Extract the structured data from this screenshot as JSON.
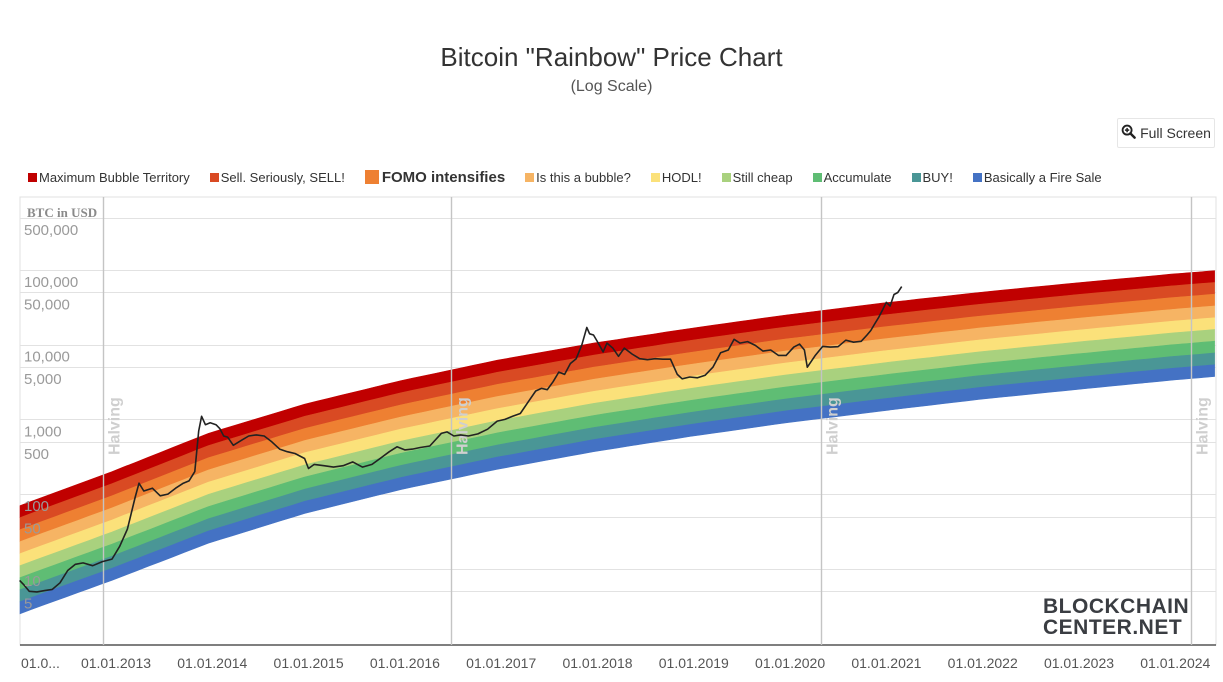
{
  "header": {
    "title": "Bitcoin \"Rainbow\" Price Chart",
    "subtitle": "(Log Scale)"
  },
  "toolbar": {
    "fullscreen_label": "Full Screen",
    "fullscreen_icon": "zoom-in-icon"
  },
  "watermark": {
    "line1": "BLOCKCHAIN",
    "line2": "CENTER.NET"
  },
  "chart_data": {
    "type": "area",
    "title": "Bitcoin \"Rainbow\" Price Chart",
    "subtitle": "(Log Scale)",
    "ylabel": "BTC in USD",
    "xlabel": "",
    "yscale": "log",
    "ylim": [
      1,
      1000000
    ],
    "xlim": [
      2012.04,
      2024.45
    ],
    "grid": true,
    "legend_position": "top",
    "y_ticks": [
      {
        "value": 500000,
        "label": "500,000"
      },
      {
        "value": 100000,
        "label": "100,000"
      },
      {
        "value": 50000,
        "label": "50,000"
      },
      {
        "value": 10000,
        "label": "10,000"
      },
      {
        "value": 5000,
        "label": "5,000"
      },
      {
        "value": 1000,
        "label": "1,000"
      },
      {
        "value": 500,
        "label": "500"
      },
      {
        "value": 100,
        "label": "100"
      },
      {
        "value": 50,
        "label": "50"
      },
      {
        "value": 10,
        "label": "10"
      },
      {
        "value": 5,
        "label": "5"
      }
    ],
    "x_ticks": [
      {
        "value": 2012.0,
        "label": "01.0..."
      },
      {
        "value": 2013.0,
        "label": "01.01.2013"
      },
      {
        "value": 2014.0,
        "label": "01.01.2014"
      },
      {
        "value": 2015.0,
        "label": "01.01.2015"
      },
      {
        "value": 2016.0,
        "label": "01.01.2016"
      },
      {
        "value": 2017.0,
        "label": "01.01.2017"
      },
      {
        "value": 2018.0,
        "label": "01.01.2018"
      },
      {
        "value": 2019.0,
        "label": "01.01.2019"
      },
      {
        "value": 2020.0,
        "label": "01.01.2020"
      },
      {
        "value": 2021.0,
        "label": "01.01.2021"
      },
      {
        "value": 2022.0,
        "label": "01.01.2022"
      },
      {
        "value": 2023.0,
        "label": "01.01.2023"
      },
      {
        "value": 2024.0,
        "label": "01.01.2024"
      }
    ],
    "halvings": [
      {
        "date": 2012.91,
        "label": "Halving"
      },
      {
        "date": 2016.52,
        "label": "Halving"
      },
      {
        "date": 2020.36,
        "label": "Halving"
      },
      {
        "date": 2024.2,
        "label": "Halving"
      }
    ],
    "bands": [
      {
        "name": "Maximum Bubble Territory",
        "color": "#c00000"
      },
      {
        "name": "Sell. Seriously, SELL!",
        "color": "#d94a23"
      },
      {
        "name": "FOMO intensifies",
        "color": "#ee8032",
        "highlighted": true
      },
      {
        "name": "Is this a bubble?",
        "color": "#f6b464"
      },
      {
        "name": "HODL!",
        "color": "#fbe17a"
      },
      {
        "name": "Still cheap",
        "color": "#a9d17e"
      },
      {
        "name": "Accumulate",
        "color": "#5fbd74"
      },
      {
        "name": "BUY!",
        "color": "#4a9696"
      },
      {
        "name": "Basically a Fire Sale",
        "color": "#4472c4"
      }
    ],
    "band_edges": {
      "x": [
        2012.04,
        2013.0,
        2014.0,
        2015.0,
        2016.0,
        2017.0,
        2018.0,
        2019.0,
        2020.0,
        2021.0,
        2022.0,
        2023.0,
        2024.0,
        2024.45
      ],
      "top": [
        70,
        200,
        650,
        1600,
        3300,
        6200,
        10500,
        16500,
        25000,
        36000,
        50000,
        67000,
        88000,
        98000
      ],
      "bottom": [
        2.5,
        7,
        22,
        55,
        115,
        215,
        370,
        590,
        900,
        1300,
        1850,
        2500,
        3350,
        3750
      ]
    },
    "series": [
      {
        "name": "BTC price",
        "color": "#222222",
        "x": [
          2012.04,
          2012.08,
          2012.14,
          2012.22,
          2012.3,
          2012.38,
          2012.46,
          2012.54,
          2012.62,
          2012.7,
          2012.8,
          2012.9,
          2013.0,
          2013.08,
          2013.16,
          2013.24,
          2013.28,
          2013.33,
          2013.42,
          2013.5,
          2013.58,
          2013.66,
          2013.74,
          2013.8,
          2013.86,
          2013.9,
          2013.93,
          2013.97,
          2014.02,
          2014.08,
          2014.12,
          2014.16,
          2014.2,
          2014.26,
          2014.34,
          2014.42,
          2014.5,
          2014.58,
          2014.66,
          2014.74,
          2014.82,
          2014.9,
          2015.0,
          2015.04,
          2015.1,
          2015.2,
          2015.3,
          2015.4,
          2015.5,
          2015.6,
          2015.7,
          2015.8,
          2015.88,
          2015.96,
          2016.04,
          2016.12,
          2016.2,
          2016.3,
          2016.42,
          2016.48,
          2016.55,
          2016.62,
          2016.7,
          2016.8,
          2016.9,
          2017.0,
          2017.08,
          2017.16,
          2017.24,
          2017.32,
          2017.4,
          2017.46,
          2017.52,
          2017.58,
          2017.64,
          2017.7,
          2017.76,
          2017.82,
          2017.88,
          2017.93,
          2017.96,
          2018.0,
          2018.04,
          2018.1,
          2018.14,
          2018.2,
          2018.26,
          2018.32,
          2018.4,
          2018.48,
          2018.56,
          2018.64,
          2018.72,
          2018.8,
          2018.87,
          2018.92,
          2019.0,
          2019.08,
          2019.16,
          2019.24,
          2019.32,
          2019.4,
          2019.46,
          2019.52,
          2019.6,
          2019.68,
          2019.76,
          2019.84,
          2019.92,
          2020.0,
          2020.08,
          2020.14,
          2020.19,
          2020.22,
          2020.3,
          2020.38,
          2020.46,
          2020.54,
          2020.62,
          2020.7,
          2020.78,
          2020.84,
          2020.88,
          2020.92,
          2020.96,
          2021.0,
          2021.04,
          2021.08,
          2021.12,
          2021.16,
          2021.2
        ],
        "values": [
          7,
          6.2,
          5.0,
          4.9,
          5.1,
          5.3,
          6.5,
          9.5,
          11.5,
          12,
          11,
          12.5,
          13.5,
          20,
          34,
          90,
          140,
          110,
          120,
          95,
          100,
          120,
          140,
          150,
          200,
          700,
          1100,
          850,
          900,
          850,
          750,
          600,
          580,
          450,
          520,
          600,
          620,
          600,
          500,
          400,
          370,
          350,
          300,
          220,
          250,
          240,
          230,
          240,
          270,
          230,
          250,
          310,
          370,
          430,
          390,
          400,
          420,
          440,
          650,
          680,
          600,
          620,
          600,
          640,
          740,
          950,
          1000,
          1100,
          1200,
          1700,
          2400,
          2600,
          2500,
          3200,
          4300,
          4000,
          5600,
          6500,
          10000,
          17000,
          14000,
          13500,
          11000,
          8000,
          10500,
          9000,
          7000,
          9000,
          7500,
          6500,
          6300,
          6500,
          6400,
          6400,
          4000,
          3500,
          3700,
          3600,
          3900,
          5000,
          7800,
          8500,
          11800,
          10500,
          11000,
          9800,
          8200,
          8500,
          7200,
          7200,
          9300,
          10200,
          8500,
          5000,
          7100,
          9500,
          9300,
          9400,
          11500,
          10800,
          11100,
          13500,
          15500,
          19000,
          23000,
          29000,
          37000,
          33000,
          47000,
          50000,
          60000
        ]
      }
    ]
  }
}
